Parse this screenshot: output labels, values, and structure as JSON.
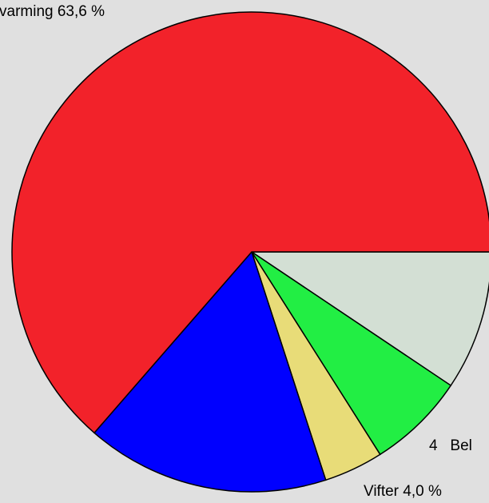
{
  "chart_data": {
    "type": "pie",
    "values": [
      9.4,
      6.6,
      4.0,
      16.4,
      63.6
    ],
    "colors": [
      "#d3dfd4",
      "#22ee44",
      "#e8dc78",
      "#0000ff",
      "#f2222a"
    ],
    "value_labels": [
      null,
      null,
      "Vifter 4,0 %",
      null,
      "varming 63,6 %"
    ],
    "annotations": [
      "4   Bel"
    ]
  }
}
